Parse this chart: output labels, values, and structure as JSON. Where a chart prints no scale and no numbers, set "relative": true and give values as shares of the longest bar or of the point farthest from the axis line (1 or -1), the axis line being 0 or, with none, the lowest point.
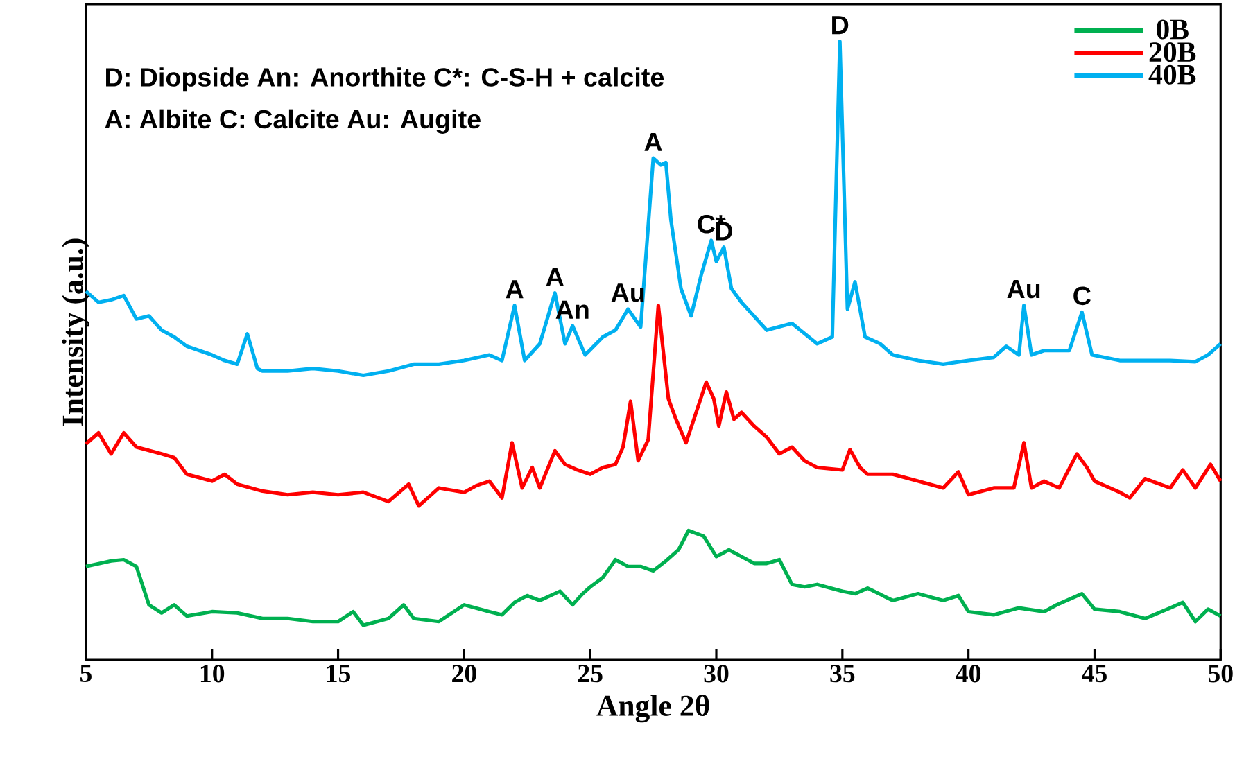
{
  "chart_data": {
    "type": "line",
    "relative": true,
    "xlabel": "Angle 2θ",
    "ylabel": "Intensity (a.u.)",
    "xlim": [
      5,
      50
    ],
    "xticks": [
      5,
      10,
      15,
      20,
      25,
      30,
      35,
      40,
      45,
      50
    ],
    "legend": "top right",
    "series": [
      {
        "name": "0B",
        "color": "#00b050",
        "x": [
          5,
          6,
          6.5,
          7,
          7.5,
          8,
          8.5,
          9,
          10,
          11,
          12,
          13,
          14,
          15,
          15.6,
          16,
          17,
          17.6,
          18,
          19,
          20,
          21,
          21.5,
          22,
          22.5,
          23,
          23.8,
          24.3,
          24.7,
          25,
          25.5,
          26,
          26.5,
          27,
          27.5,
          28,
          28.5,
          28.9,
          29.5,
          30,
          30.5,
          31,
          31.5,
          32,
          32.5,
          33,
          33.5,
          34,
          35,
          35.5,
          36,
          37,
          38,
          39,
          39.6,
          40,
          41,
          42,
          43,
          43.5,
          44.5,
          45,
          46,
          47,
          48,
          48.5,
          49,
          49.5,
          50
        ],
        "values": [
          0.151,
          0.16,
          0.162,
          0.151,
          0.089,
          0.076,
          0.089,
          0.071,
          0.078,
          0.076,
          0.067,
          0.067,
          0.062,
          0.062,
          0.078,
          0.056,
          0.067,
          0.089,
          0.067,
          0.062,
          0.089,
          0.078,
          0.073,
          0.093,
          0.104,
          0.096,
          0.111,
          0.089,
          0.107,
          0.118,
          0.133,
          0.162,
          0.151,
          0.151,
          0.144,
          0.16,
          0.178,
          0.209,
          0.2,
          0.167,
          0.178,
          0.167,
          0.156,
          0.156,
          0.162,
          0.122,
          0.118,
          0.122,
          0.111,
          0.107,
          0.116,
          0.096,
          0.107,
          0.096,
          0.104,
          0.078,
          0.073,
          0.084,
          0.078,
          0.089,
          0.107,
          0.082,
          0.078,
          0.067,
          0.084,
          0.093,
          0.062,
          0.082,
          0.071
        ]
      },
      {
        "name": "20B",
        "color": "#ff0000",
        "x": [
          5,
          5.5,
          6,
          6.5,
          7,
          8,
          8.5,
          9,
          10,
          10.5,
          11,
          12,
          13,
          14,
          15,
          16,
          17,
          17.8,
          18.2,
          19,
          20,
          20.5,
          21,
          21.5,
          21.9,
          22.3,
          22.7,
          23,
          23.6,
          24,
          24.5,
          25,
          25.5,
          26,
          26.3,
          26.6,
          26.9,
          27.3,
          27.7,
          28.1,
          28.4,
          28.8,
          29.2,
          29.6,
          29.9,
          30.1,
          30.4,
          30.7,
          31,
          31.5,
          32,
          32.5,
          33,
          33.5,
          34,
          35,
          35.3,
          35.7,
          36,
          37,
          38,
          39,
          39.6,
          40,
          41,
          41.8,
          42.2,
          42.5,
          43,
          43.6,
          44.3,
          44.7,
          45,
          46,
          46.4,
          47,
          48,
          48.5,
          49,
          49.6,
          50
        ],
        "values": [
          0.349,
          0.367,
          0.333,
          0.367,
          0.344,
          0.333,
          0.327,
          0.3,
          0.289,
          0.3,
          0.284,
          0.273,
          0.267,
          0.271,
          0.267,
          0.271,
          0.256,
          0.284,
          0.249,
          0.278,
          0.271,
          0.282,
          0.289,
          0.262,
          0.351,
          0.278,
          0.311,
          0.278,
          0.338,
          0.316,
          0.307,
          0.3,
          0.311,
          0.316,
          0.344,
          0.418,
          0.322,
          0.356,
          0.573,
          0.422,
          0.389,
          0.351,
          0.4,
          0.449,
          0.422,
          0.378,
          0.433,
          0.389,
          0.4,
          0.378,
          0.36,
          0.333,
          0.344,
          0.322,
          0.311,
          0.307,
          0.34,
          0.311,
          0.3,
          0.3,
          0.289,
          0.278,
          0.304,
          0.267,
          0.278,
          0.278,
          0.351,
          0.278,
          0.289,
          0.278,
          0.333,
          0.311,
          0.289,
          0.271,
          0.262,
          0.293,
          0.278,
          0.307,
          0.278,
          0.316,
          0.289
        ]
      },
      {
        "name": "40B",
        "color": "#00b0f0",
        "x": [
          5,
          5.5,
          6,
          6.5,
          7,
          7.5,
          8,
          8.5,
          9,
          9.5,
          10,
          10.5,
          11,
          11.4,
          11.8,
          12,
          13,
          14,
          15,
          16,
          17,
          18,
          19,
          20,
          21,
          21.5,
          22,
          22.4,
          23,
          23.6,
          24,
          24.3,
          24.8,
          25.5,
          26,
          26.5,
          27,
          27.5,
          27.8,
          28,
          28.2,
          28.6,
          29,
          29.4,
          29.8,
          30,
          30.3,
          30.6,
          31,
          32,
          33,
          34,
          34.6,
          34.9,
          35.2,
          35.5,
          35.9,
          36.5,
          37,
          38,
          39,
          40,
          41,
          41.5,
          42,
          42.2,
          42.5,
          43,
          44,
          44.5,
          44.9,
          46,
          47,
          48,
          49,
          49.5,
          50
        ],
        "values": [
          0.596,
          0.578,
          0.582,
          0.589,
          0.551,
          0.556,
          0.533,
          0.522,
          0.507,
          0.5,
          0.493,
          0.484,
          0.478,
          0.527,
          0.471,
          0.467,
          0.467,
          0.471,
          0.467,
          0.46,
          0.467,
          0.478,
          0.478,
          0.484,
          0.493,
          0.484,
          0.573,
          0.484,
          0.511,
          0.593,
          0.511,
          0.54,
          0.493,
          0.522,
          0.533,
          0.567,
          0.538,
          0.811,
          0.8,
          0.804,
          0.711,
          0.6,
          0.556,
          0.622,
          0.678,
          0.644,
          0.667,
          0.6,
          0.578,
          0.533,
          0.544,
          0.511,
          0.522,
          1,
          0.567,
          0.611,
          0.522,
          0.511,
          0.493,
          0.484,
          0.478,
          0.484,
          0.489,
          0.507,
          0.493,
          0.573,
          0.493,
          0.5,
          0.5,
          0.562,
          0.493,
          0.484,
          0.484,
          0.484,
          0.482,
          0.493,
          0.511
        ]
      }
    ],
    "annotations": [
      "D: Diopside  An: Anorthite   C*: C-S-H + calcite",
      "A: Albite  C: Calcite   Au: Augite",
      {
        "text": "A",
        "x": 22,
        "y": 0.573
      },
      {
        "text": "A",
        "x": 23.6,
        "y": 0.593
      },
      {
        "text": "An",
        "x": 24.3,
        "y": 0.54
      },
      {
        "text": "Au",
        "x": 26.5,
        "y": 0.567
      },
      {
        "text": "A",
        "x": 27.5,
        "y": 0.811
      },
      {
        "text": "C*",
        "x": 29.8,
        "y": 0.678
      },
      {
        "text": "D",
        "x": 30.3,
        "y": 0.667
      },
      {
        "text": "D",
        "x": 34.9,
        "y": 1
      },
      {
        "text": "Au",
        "x": 42.2,
        "y": 0.573
      },
      {
        "text": "C",
        "x": 44.5,
        "y": 0.562
      }
    ]
  }
}
